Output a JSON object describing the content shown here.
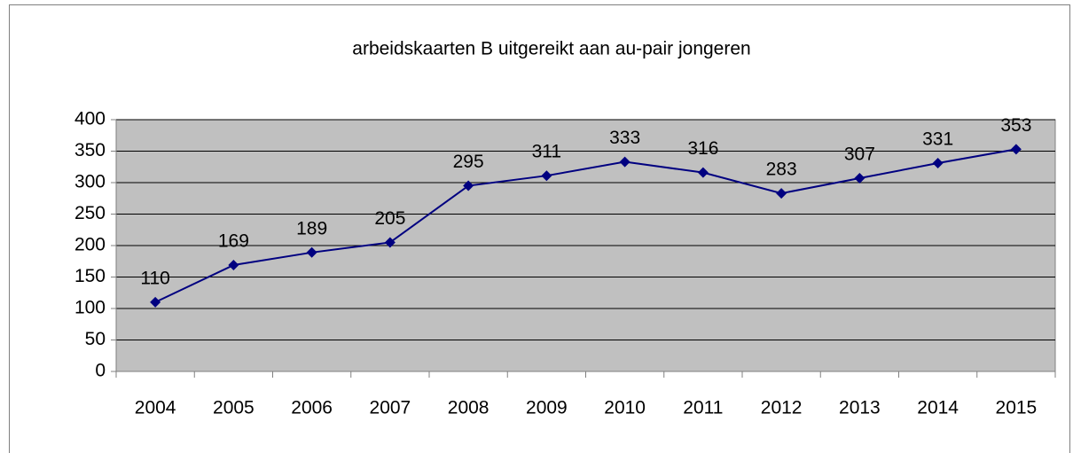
{
  "chart_data": {
    "type": "line",
    "title": "arbeidskaarten B uitgereikt aan au-pair jongeren",
    "categories": [
      "2004",
      "2005",
      "2006",
      "2007",
      "2008",
      "2009",
      "2010",
      "2011",
      "2012",
      "2013",
      "2014",
      "2015"
    ],
    "values": [
      110,
      169,
      189,
      205,
      295,
      311,
      333,
      316,
      283,
      307,
      331,
      353
    ],
    "color": "#000080",
    "ylim": [
      0,
      400
    ],
    "yticks": [
      0,
      50,
      100,
      150,
      200,
      250,
      300,
      350,
      400
    ],
    "grid": true
  }
}
